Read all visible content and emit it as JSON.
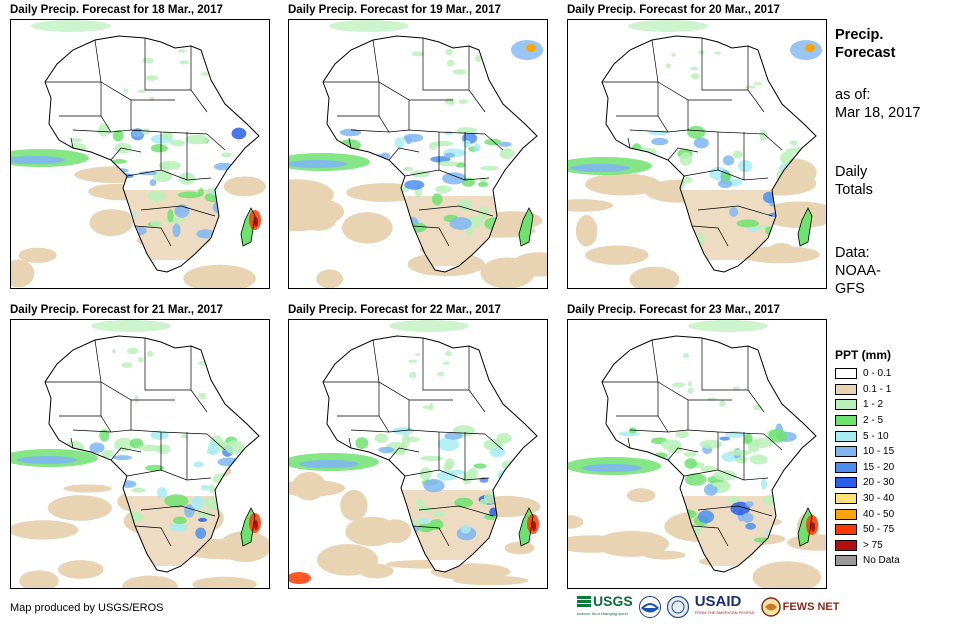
{
  "panels": [
    {
      "title": "Daily Precip. Forecast for 18 Mar., 2017"
    },
    {
      "title": "Daily Precip. Forecast for 19 Mar., 2017"
    },
    {
      "title": "Daily Precip. Forecast for 20 Mar., 2017"
    },
    {
      "title": "Daily Precip. Forecast for 21 Mar., 2017"
    },
    {
      "title": "Daily Precip. Forecast for 22 Mar., 2017"
    },
    {
      "title": "Daily Precip. Forecast for 23 Mar., 2017"
    }
  ],
  "sidebar": {
    "title_line1": "Precip.",
    "title_line2": "Forecast",
    "asof_label": "as of:",
    "asof_date": "Mar 18, 2017",
    "totals_line1": "Daily",
    "totals_line2": "Totals",
    "data_label": "Data:",
    "data_line1": "NOAA-",
    "data_line2": "GFS"
  },
  "legend": {
    "title": "PPT (mm)",
    "items": [
      {
        "label": "0 - 0.1",
        "color": "#ffffff"
      },
      {
        "label": "0.1 - 1",
        "color": "#e8d3b3"
      },
      {
        "label": "1 - 2",
        "color": "#b8f0b8"
      },
      {
        "label": "2 - 5",
        "color": "#6ee26e"
      },
      {
        "label": "5 - 10",
        "color": "#a6ecf2"
      },
      {
        "label": "10 - 15",
        "color": "#7fb6f2"
      },
      {
        "label": "15 - 20",
        "color": "#4c8ff0"
      },
      {
        "label": "20 - 30",
        "color": "#2a5fe8"
      },
      {
        "label": "30 - 40",
        "color": "#ffe17a"
      },
      {
        "label": "40 - 50",
        "color": "#ffa500"
      },
      {
        "label": "50 - 75",
        "color": "#ff3a00"
      },
      {
        "label": "> 75",
        "color": "#b01010"
      },
      {
        "label": "No Data",
        "color": "#999999"
      }
    ]
  },
  "footer": {
    "credit": "Map produced by USGS/EROS",
    "logos": {
      "usgs": "USGS",
      "usgs_tag": "science for a changing world",
      "usaid": "USAID",
      "usaid_tag": "FROM THE AMERICAN PEOPLE",
      "fewsnet": "FEWS NET"
    }
  }
}
